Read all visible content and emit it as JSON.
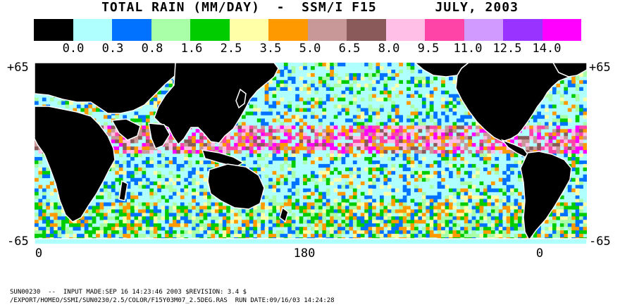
{
  "title": "TOTAL RAIN (MM/DAY)  -  SSM/I F15       JULY, 2003",
  "legend": {
    "colors": [
      "#000000",
      "#b0ffff",
      "#0072ff",
      "#a8ffa8",
      "#00cc00",
      "#ffffa8",
      "#ff9900",
      "#c89898",
      "#8a5a5a",
      "#ffbfe6",
      "#ff44a8",
      "#d09aff",
      "#9933ff",
      "#ff00ff"
    ],
    "labels": [
      "0.0",
      "0.3",
      "0.8",
      "1.6",
      "2.5",
      "3.5",
      "5.0",
      "6.5",
      "8.0",
      "9.5",
      "11.0",
      "12.5",
      "14.0"
    ]
  },
  "axes": {
    "lat_top": "+65",
    "lat_bottom": "-65",
    "lon_labels": [
      "0",
      "180",
      "0"
    ]
  },
  "map": {
    "land_color": "#000000",
    "ocean_color": "#b0ffff",
    "coast_color": "#ffffff"
  },
  "footer": {
    "line1": "SUN00230  --  INPUT MADE:SEP 16 14:23:46 2003 $REVISION: 3.4 $",
    "line2": "/EXPORT/HOMEO/SSMI/SUN0230/2.5/COLOR/F15Y03M07_2.5DEG.RAS  RUN DATE:09/16/03 14:24:28"
  }
}
